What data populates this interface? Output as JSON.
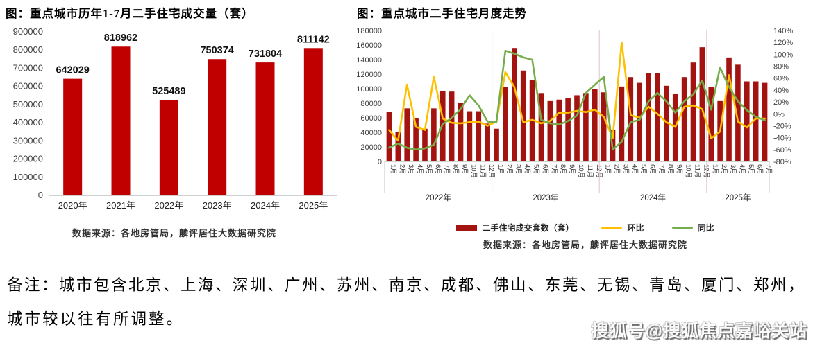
{
  "note": {
    "line1": "备注：城市包含北京、上海、深圳、广州、苏州、南京、成都、佛山、东莞、无锡、青岛、厦门、郑州，",
    "line2": "城市较以往有所调整。"
  },
  "watermark": "搜狐号@搜狐焦点嘉峪关站",
  "colors": {
    "left_bar": "#C00000",
    "right_bar": "#A31310",
    "huanbi_line": "#FFC000",
    "tongbi_line": "#76AD4B",
    "axis_text": "#3F3F3F"
  },
  "chart_data": [
    {
      "type": "bar",
      "title": "图：重点城市历年1-7月二手住宅成交量（套）",
      "source": "数据来源：各地房管局，麟评居住大数据研究院",
      "categories": [
        "2020年",
        "2021年",
        "2022年",
        "2023年",
        "2024年",
        "2025年"
      ],
      "values": [
        642029,
        818962,
        525489,
        750374,
        731804,
        811142
      ],
      "data_labels": [
        "642029",
        "818962",
        "525489",
        "750374",
        "731804",
        "811142"
      ],
      "ylabel": "",
      "xlabel": "",
      "ylim": [
        0,
        900000
      ],
      "ytick_step": 100000,
      "grid": false,
      "bar_color": "#C00000"
    },
    {
      "type": "bar+line",
      "title": "图：重点城市二手住宅月度走势",
      "source": "数据来源：各地房管局，麟评居住大数据研究院",
      "legend_position": "bottom",
      "ylim_left": [
        0,
        180000
      ],
      "ytick_step_left": 20000,
      "ylim_right_pct": [
        -80,
        140
      ],
      "ytick_step_right_pct": 20,
      "grid": false,
      "year_groups": [
        {
          "label": "2022年",
          "months": 12
        },
        {
          "label": "2023年",
          "months": 12
        },
        {
          "label": "2024年",
          "months": 12
        },
        {
          "label": "2025年",
          "months": 7
        }
      ],
      "x_labels": [
        "1月",
        "2月",
        "3月",
        "4月",
        "5月",
        "6月",
        "7月",
        "8月",
        "9月",
        "10月",
        "11月",
        "12月",
        "1月",
        "2月",
        "3月",
        "4月",
        "5月",
        "6月",
        "7月",
        "8月",
        "9月",
        "10月",
        "11月",
        "12月",
        "1月",
        "2月",
        "3月",
        "4月",
        "5月",
        "6月",
        "7月",
        "8月",
        "9月",
        "10月",
        "11月",
        "12月",
        "1月",
        "2月",
        "3月",
        "4月",
        "5月",
        "6月",
        "7月"
      ],
      "series": [
        {
          "name": "二手住宅成交套数（套）",
          "type": "bar",
          "axis": "left",
          "color": "#A31310",
          "values": [
            68000,
            40000,
            73000,
            59000,
            45000,
            73000,
            97000,
            96000,
            80000,
            69000,
            69000,
            52000,
            45000,
            102000,
            156000,
            125000,
            112000,
            94000,
            83000,
            85000,
            87000,
            91000,
            94000,
            100000,
            95000,
            43000,
            103000,
            116000,
            108000,
            121000,
            121000,
            104000,
            93000,
            116000,
            136000,
            157000,
            102000,
            83000,
            143000,
            133000,
            110000,
            110000,
            108000
          ]
        },
        {
          "name": "环比",
          "type": "line",
          "axis": "right",
          "color": "#FFC000",
          "values_pct": [
            -27,
            -45,
            49,
            -22,
            -27,
            62,
            -8,
            -15,
            -16,
            -14,
            -13,
            -20,
            -13,
            70,
            45,
            -14,
            -10,
            -16,
            -12,
            2,
            2,
            5,
            3,
            7,
            -5,
            -41,
            120,
            -2,
            -7,
            12,
            0,
            -14,
            -22,
            12,
            14,
            8,
            -41,
            -30,
            65,
            -13,
            -23,
            -8,
            -8
          ]
        },
        {
          "name": "同比",
          "type": "line",
          "axis": "right",
          "color": "#76AD4B",
          "values_pct": [
            -57,
            -50,
            -57,
            -60,
            -58,
            -52,
            -17,
            -7,
            8,
            31,
            14,
            -13,
            -14,
            106,
            101,
            95,
            91,
            -10,
            -16,
            -18,
            -12,
            -3,
            35,
            49,
            62,
            -60,
            -47,
            -14,
            -10,
            21,
            35,
            21,
            2,
            21,
            33,
            56,
            7,
            78,
            45,
            21,
            6,
            -5,
            -11
          ]
        }
      ]
    }
  ]
}
